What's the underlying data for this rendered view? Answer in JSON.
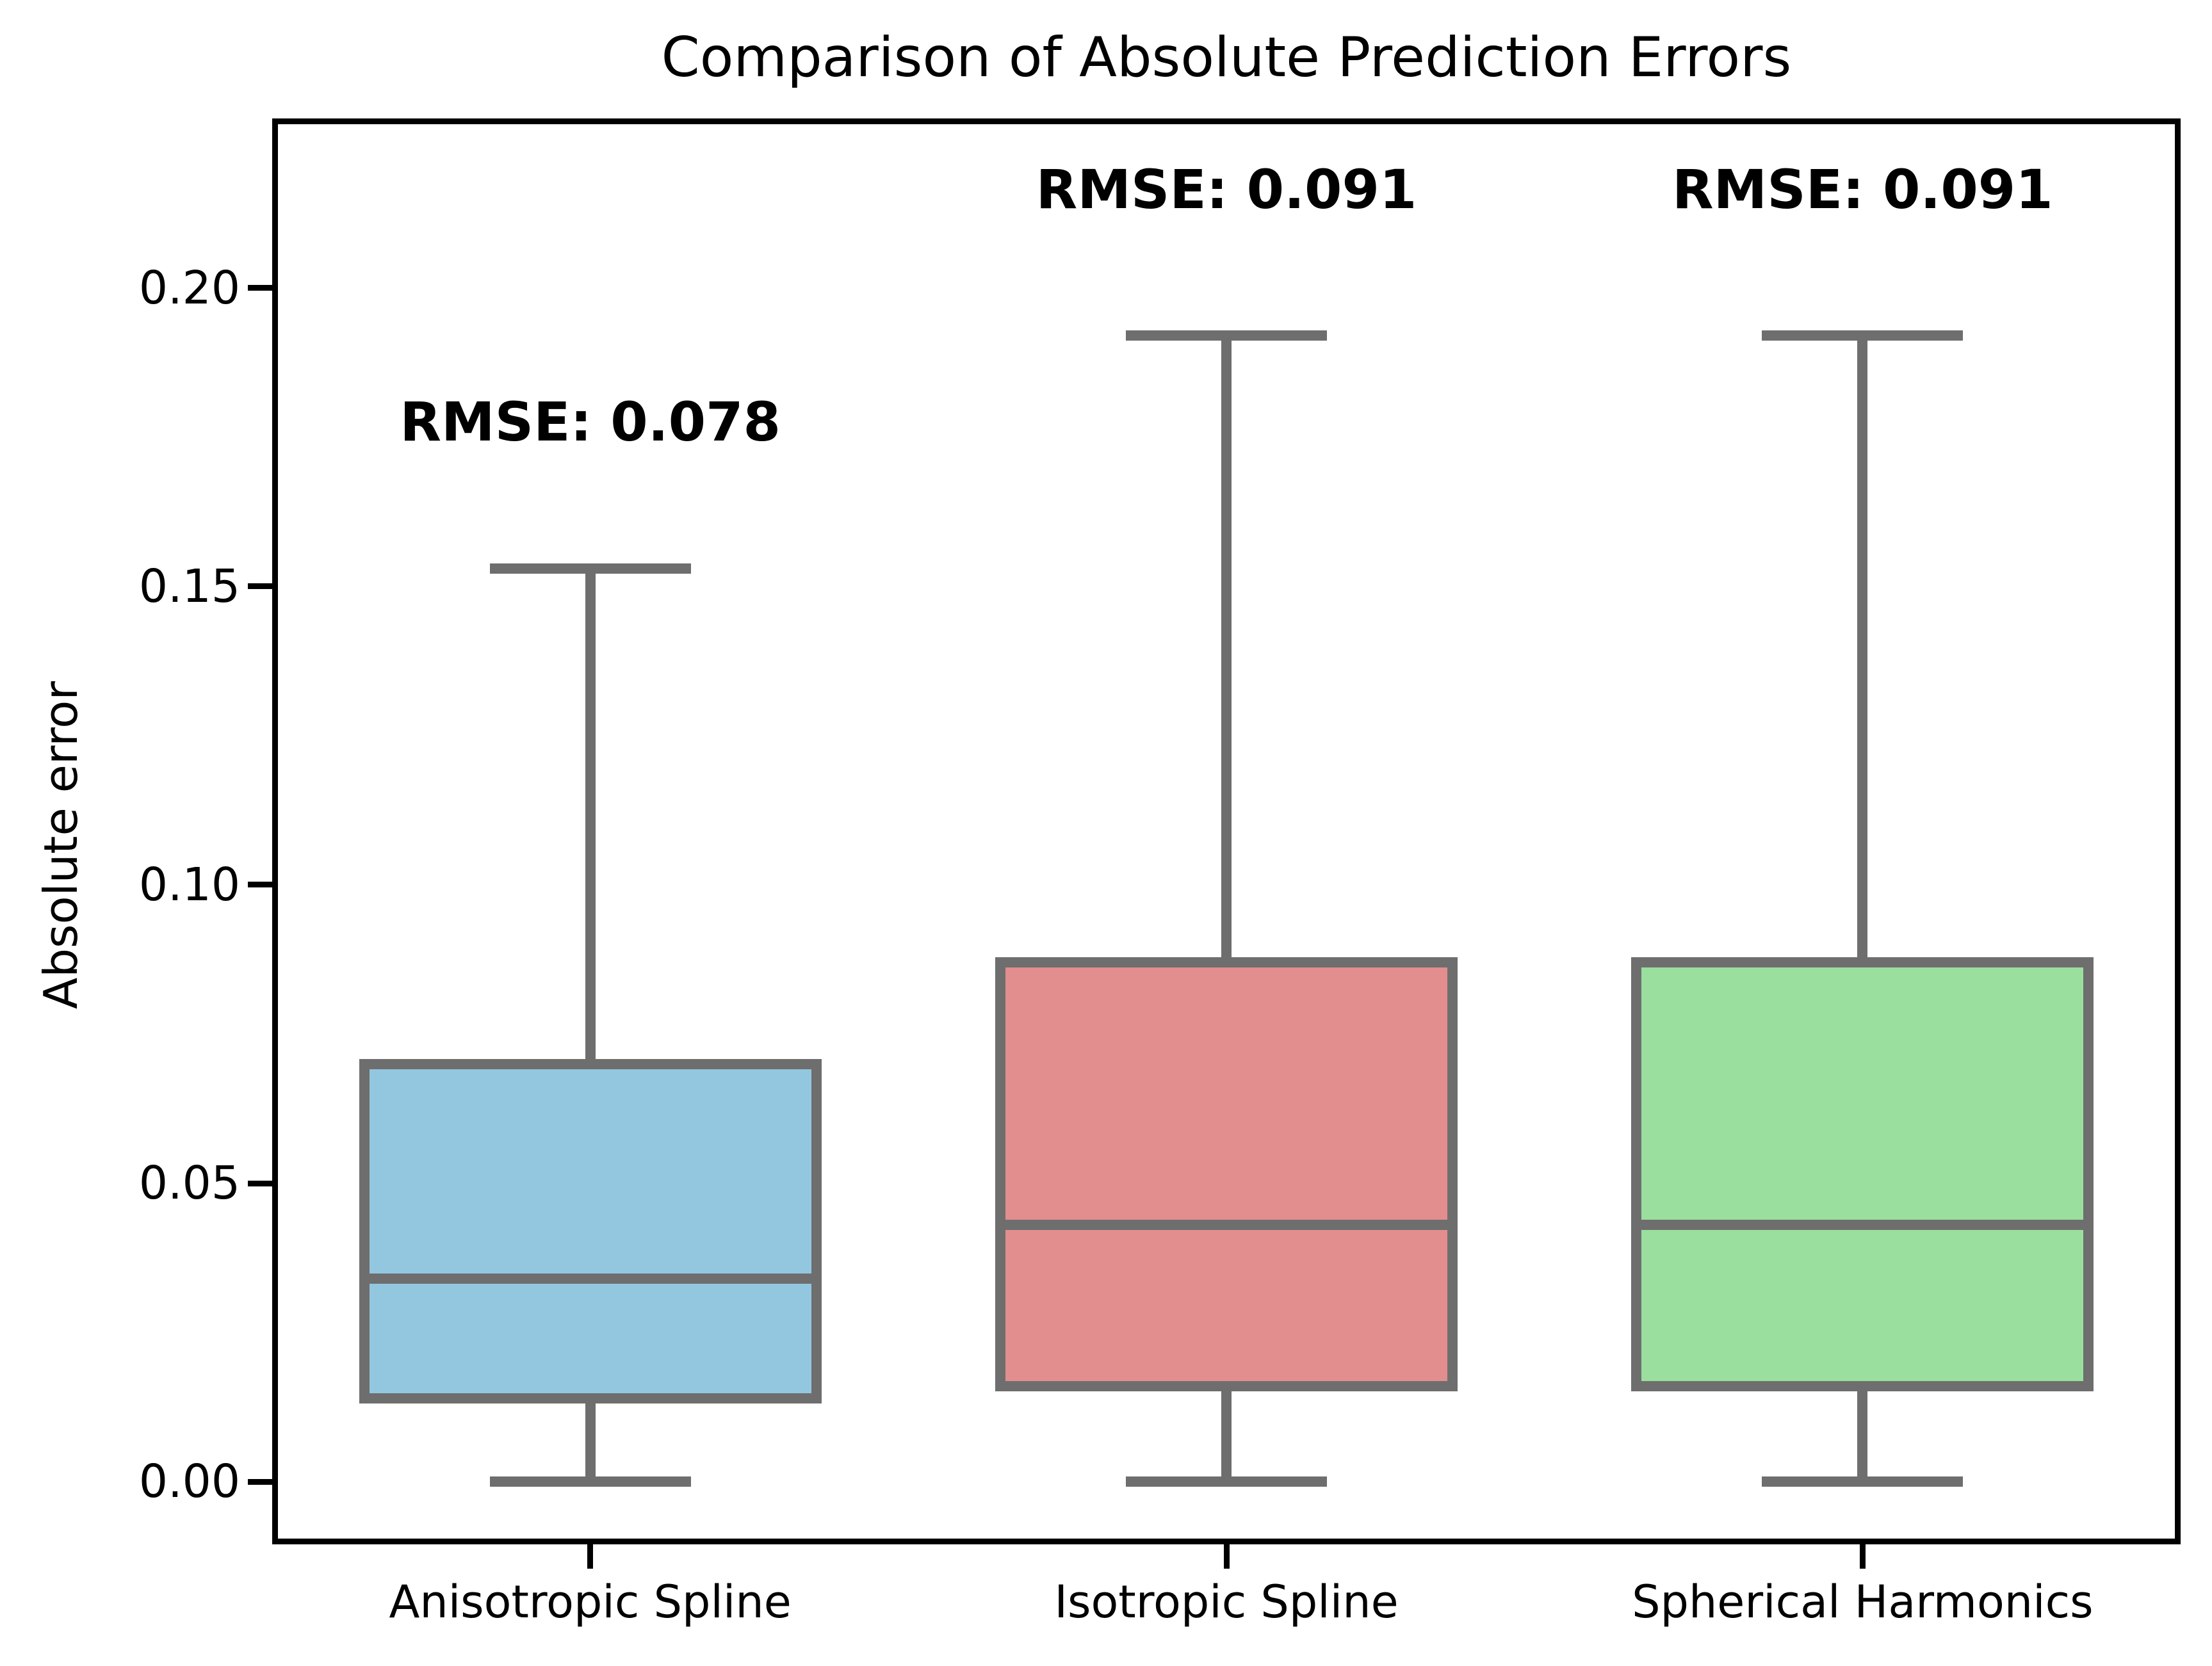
{
  "chart_data": {
    "type": "boxplot",
    "title": "Comparison of Absolute Prediction Errors",
    "ylabel": "Absolute error",
    "xlabel": "",
    "categories": [
      "Anisotropic Spline",
      "Isotropic Spline",
      "Spherical Harmonics"
    ],
    "series": [
      {
        "name": "Anisotropic Spline",
        "fill_color": "#93C7DF",
        "whislo": 0.0,
        "q1": 0.014,
        "med": 0.034,
        "q3": 0.07,
        "whishi": 0.153
      },
      {
        "name": "Isotropic Spline",
        "fill_color": "#E28E8E",
        "whislo": 0.0,
        "q1": 0.016,
        "med": 0.043,
        "q3": 0.087,
        "whishi": 0.192
      },
      {
        "name": "Spherical Harmonics",
        "fill_color": "#9ADF9D",
        "whislo": 0.0,
        "q1": 0.016,
        "med": 0.043,
        "q3": 0.087,
        "whishi": 0.192
      }
    ],
    "annotations": [
      {
        "text": "RMSE: 0.078",
        "category_index": 0,
        "y_value": 0.173
      },
      {
        "text": "RMSE: 0.091",
        "category_index": 1,
        "y_value": 0.212
      },
      {
        "text": "RMSE: 0.091",
        "category_index": 2,
        "y_value": 0.212
      }
    ],
    "yticks": [
      0.0,
      0.05,
      0.1,
      0.15,
      0.2
    ],
    "ytick_labels": [
      "0.00",
      "0.05",
      "0.10",
      "0.15",
      "0.20"
    ],
    "ylim": [
      -0.0105,
      0.2284
    ],
    "grid": false,
    "legend": "none",
    "line_color": "#6E6E6E",
    "spine_color": "#000000",
    "text_color": "#000000",
    "background_color": "#ffffff"
  }
}
